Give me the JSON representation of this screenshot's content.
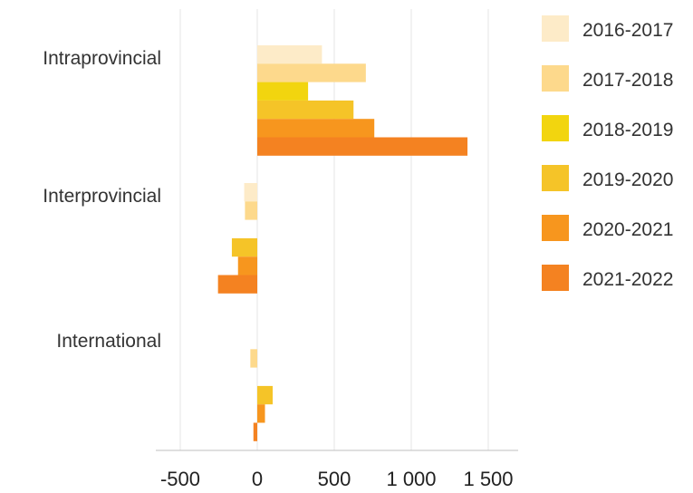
{
  "chart_data": {
    "type": "bar",
    "orientation": "horizontal",
    "title": "",
    "xlabel": "",
    "ylabel": "",
    "categories": [
      "Intraprovincial",
      "Interprovincial",
      "International"
    ],
    "series": [
      {
        "name": "2016-2017",
        "color": "#FDEBC8",
        "values": [
          420,
          -85,
          0
        ]
      },
      {
        "name": "2017-2018",
        "color": "#FDD98C",
        "values": [
          705,
          -80,
          -45
        ]
      },
      {
        "name": "2018-2019",
        "color": "#F2D50F",
        "values": [
          330,
          0,
          0
        ]
      },
      {
        "name": "2019-2020",
        "color": "#F5C428",
        "values": [
          625,
          -165,
          100
        ]
      },
      {
        "name": "2020-2021",
        "color": "#F7961E",
        "values": [
          760,
          -125,
          50
        ]
      },
      {
        "name": "2021-2022",
        "color": "#F48221",
        "values": [
          1365,
          -255,
          -25
        ]
      }
    ],
    "xlim": [
      -650,
      1700
    ],
    "xticks": [
      -500,
      0,
      500,
      1000,
      1500
    ],
    "xtick_labels": [
      "-500",
      "0",
      "500",
      "1 000",
      "1 500"
    ],
    "grid": true,
    "legend_position": "right"
  }
}
